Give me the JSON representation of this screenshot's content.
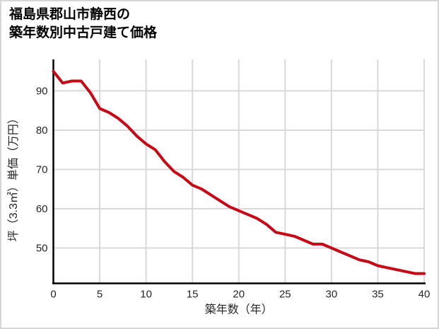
{
  "page": {
    "title_line1": "福島県郡山市静西の",
    "title_line2": "築年数別中古戸建て価格"
  },
  "chart_data": {
    "type": "line",
    "title": "福島県郡山市静西の築年数別中古戸建て価格",
    "xlabel": "築年数（年）",
    "ylabel": "坪（3.3㎡）単価（万円）",
    "x": [
      0,
      1,
      2,
      3,
      4,
      5,
      6,
      7,
      8,
      9,
      10,
      11,
      12,
      13,
      14,
      15,
      16,
      17,
      18,
      19,
      20,
      21,
      22,
      23,
      24,
      25,
      26,
      27,
      28,
      29,
      30,
      31,
      32,
      33,
      34,
      35,
      36,
      37,
      38,
      39,
      40
    ],
    "values": [
      95,
      92,
      92.5,
      92.5,
      89.5,
      85.5,
      84.5,
      83,
      81,
      78.5,
      76.5,
      75,
      72,
      69.5,
      68,
      66,
      65,
      63.5,
      62,
      60.5,
      59.5,
      58.5,
      57.5,
      56,
      54,
      53.5,
      53,
      52,
      51,
      51,
      50,
      49,
      48,
      47,
      46.5,
      45.5,
      45,
      44.5,
      44,
      43.5,
      43.5
    ],
    "xlim": [
      0,
      40
    ],
    "ylim": [
      41,
      98
    ],
    "xticks": [
      0,
      5,
      10,
      15,
      20,
      25,
      30,
      35,
      40
    ],
    "yticks": [
      50,
      60,
      70,
      80,
      90
    ],
    "grid": true,
    "legend": "none",
    "colors": {
      "line": "#c80815",
      "grid": "#d9d9d9",
      "axis": "#000000",
      "text": "#262626",
      "background": "#ffffff",
      "frame_border": "#d6d6d6"
    }
  }
}
